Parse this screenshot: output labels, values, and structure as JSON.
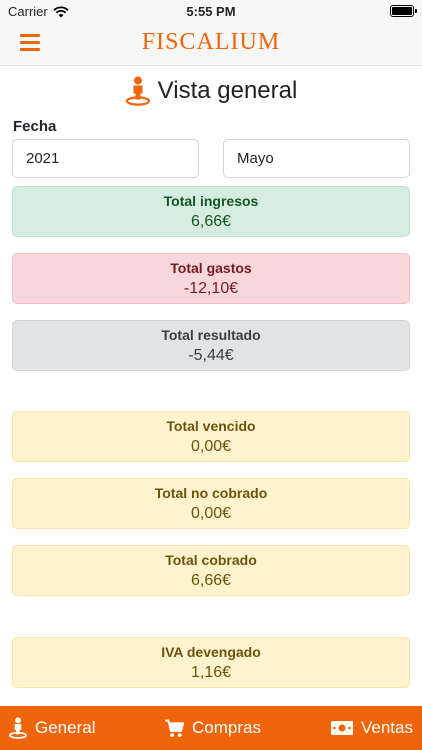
{
  "status_bar": {
    "carrier": "Carrier",
    "time": "5:55 PM",
    "icons": [
      "wifi-icon",
      "battery-icon"
    ]
  },
  "navbar": {
    "brand": "FISCALIUM",
    "menu_icon": "hamburger-menu-icon"
  },
  "page": {
    "title": "Vista general",
    "title_icon": "person-pin-icon"
  },
  "filters": {
    "label": "Fecha",
    "year": "2021",
    "month": "Mayo"
  },
  "cards": [
    {
      "title": "Total ingresos",
      "value": "6,66€",
      "color": "#d4ede0"
    },
    {
      "title": "Total gastos",
      "value": "-12,10€",
      "color": "#f8d7da"
    },
    {
      "title": "Total resultado",
      "value": "-5,44€",
      "color": "#e2e3e5"
    },
    {
      "title": "Total vencido",
      "value": "0,00€",
      "color": "#fff3cd"
    },
    {
      "title": "Total no cobrado",
      "value": "0,00€",
      "color": "#fff3cd"
    },
    {
      "title": "Total cobrado",
      "value": "6,66€",
      "color": "#fff3cd"
    },
    {
      "title": "IVA devengado",
      "value": "1,16€",
      "color": "#fff3cd"
    }
  ],
  "tabbar": {
    "accent": "#f0650a",
    "tabs": [
      {
        "label": "General",
        "icon": "person-pin-icon"
      },
      {
        "label": "Compras",
        "icon": "shopping-cart-icon"
      },
      {
        "label": "Ventas",
        "icon": "money-bill-icon"
      }
    ]
  }
}
